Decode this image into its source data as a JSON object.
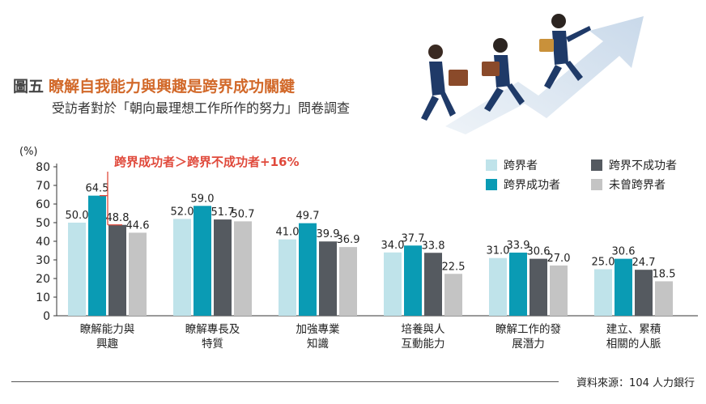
{
  "figure_no": "圖五",
  "title": "瞭解自我能力與興趣是跨界成功關鍵",
  "subtitle": "受訪者對於「朝向最理想工作所作的努力」問卷調查",
  "source": "資料來源：104 人力銀行",
  "colors": {
    "title": "#d2692a",
    "annotation": "#e04a3c",
    "series": [
      "#bfe3ea",
      "#0a9bb4",
      "#555a60",
      "#c4c4c4"
    ]
  },
  "chart_data": {
    "type": "bar",
    "unit_label": "(%)",
    "ylim": [
      0,
      80
    ],
    "yticks": [
      0,
      10,
      20,
      30,
      40,
      50,
      60,
      70,
      80
    ],
    "categories": [
      [
        "瞭解能力與",
        "興趣"
      ],
      [
        "瞭解專長及",
        "特質"
      ],
      [
        "加強專業",
        "知識"
      ],
      [
        "培養與人",
        "互動能力"
      ],
      [
        "瞭解工作的發",
        "展潛力"
      ],
      [
        "建立、累積",
        "相關的人脈"
      ]
    ],
    "series": [
      {
        "name": "跨界者",
        "values": [
          50.0,
          52.0,
          41.0,
          34.0,
          31.0,
          25.0
        ]
      },
      {
        "name": "跨界成功者",
        "values": [
          64.5,
          59.0,
          49.7,
          37.7,
          33.9,
          30.6
        ]
      },
      {
        "name": "跨界不成功者",
        "values": [
          48.8,
          51.7,
          39.9,
          33.8,
          30.6,
          24.7
        ]
      },
      {
        "name": "未曾跨界者",
        "values": [
          44.6,
          50.7,
          36.9,
          22.5,
          27.0,
          18.5
        ]
      }
    ],
    "legend_order": [
      0,
      2,
      1,
      3
    ],
    "legend_position": "top-right",
    "annotation": {
      "text": "跨界成功者＞跨界不成功者+16%",
      "category_index": 0
    }
  }
}
